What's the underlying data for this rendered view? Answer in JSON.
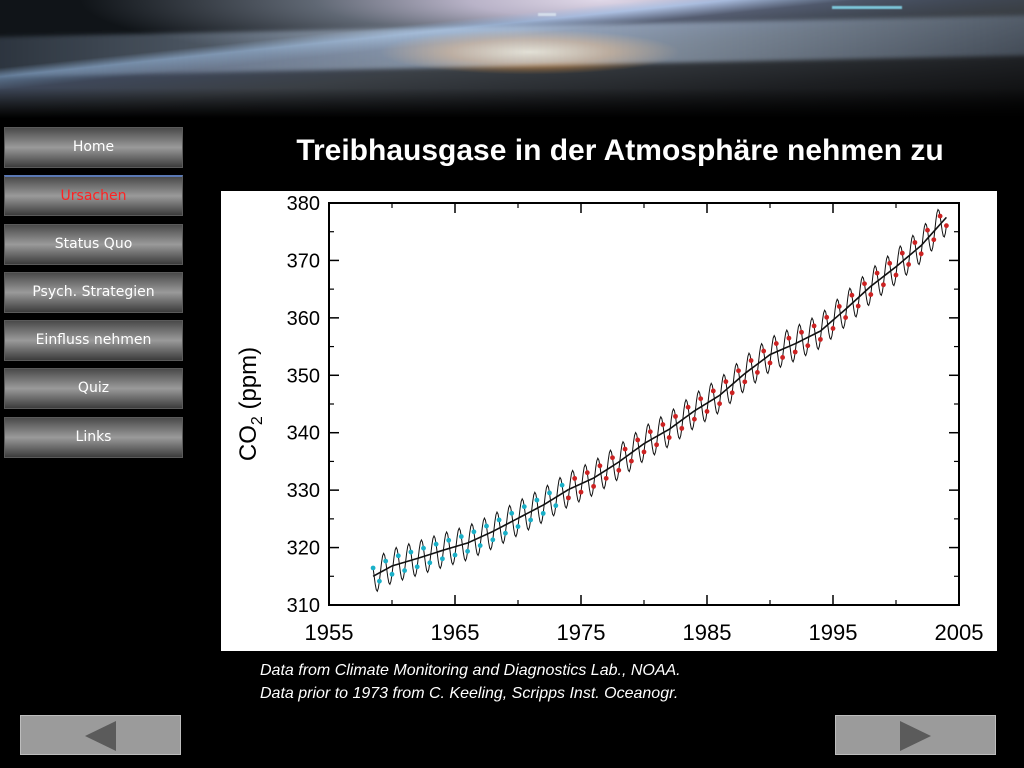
{
  "nav": {
    "items": [
      {
        "label": "Home"
      },
      {
        "label": "Ursachen",
        "active": true
      },
      {
        "label": "Status Quo"
      },
      {
        "label": "Psych. Strategien"
      },
      {
        "label": "Einfluss nehmen"
      },
      {
        "label": "Quiz"
      },
      {
        "label": "Links"
      }
    ],
    "active_color": "#ff2222"
  },
  "page_title": "Treibhausgase in der Atmosphäre nehmen zu",
  "caption": {
    "line1": "Data from Climate Monitoring and Diagnostics Lab., NOAA.",
    "line2": "Data prior to 1973 from C. Keeling, Scripps Inst. Oceanogr."
  },
  "pager": {
    "prev_icon": "left-triangle-icon",
    "next_icon": "right-triangle-icon"
  },
  "chart_data": {
    "type": "line",
    "title": "",
    "xlabel": "",
    "ylabel": "CO2 (ppm)",
    "ylabel_main": "CO",
    "ylabel_sub": "2",
    "ylabel_unit": " (ppm)",
    "xlim": [
      1955,
      2005
    ],
    "ylim": [
      310,
      380
    ],
    "x_ticks": [
      1955,
      1965,
      1975,
      1985,
      1995,
      2005
    ],
    "y_ticks": [
      310,
      320,
      330,
      340,
      350,
      360,
      370,
      380
    ],
    "grid": false,
    "series": [
      {
        "color": "#1ab0c8",
        "marker": "circle",
        "x": [
          1958.5,
          1960,
          1962,
          1964,
          1966,
          1968,
          1970,
          1972,
          1974
        ],
        "trend": [
          315.0,
          316.8,
          318.1,
          319.5,
          320.8,
          322.8,
          325.1,
          327.4,
          330.1
        ],
        "seasonal_amplitude": 3.0
      },
      {
        "color": "#cc2222",
        "marker": "circle",
        "x": [
          1974,
          1976,
          1978,
          1980,
          1982,
          1984,
          1986,
          1988,
          1990,
          1992,
          1994,
          1996,
          1998,
          2000,
          2002,
          2004
        ],
        "trend": [
          330.1,
          332.1,
          334.9,
          338.1,
          340.6,
          343.8,
          346.5,
          350.3,
          353.6,
          355.5,
          357.7,
          361.5,
          365.5,
          368.9,
          372.6,
          377.5
        ],
        "seasonal_amplitude": 3.0
      }
    ],
    "trend_line": {
      "color": "#111111",
      "name": ""
    }
  }
}
